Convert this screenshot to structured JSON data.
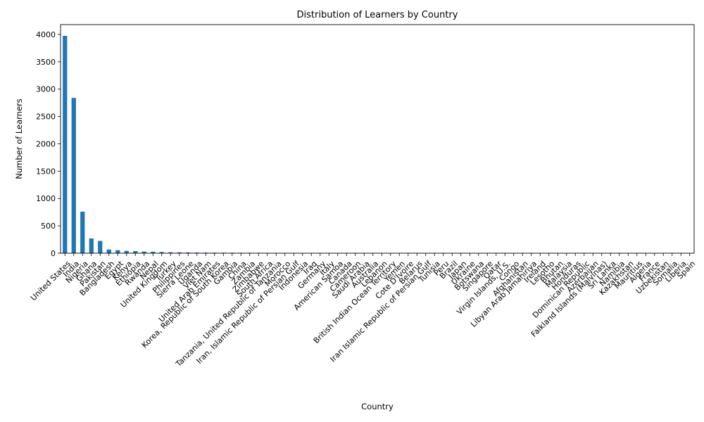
{
  "chart_data": {
    "type": "bar",
    "title": "Distribution of Learners by Country",
    "xlabel": "Country",
    "ylabel": "Number of Learners",
    "ylim": [
      0,
      4180
    ],
    "yticks": [
      0,
      500,
      1000,
      1500,
      2000,
      2500,
      3000,
      3500,
      4000
    ],
    "grid": false,
    "legend": "none",
    "bar_color": "#1f77b4",
    "categories": [
      "United States",
      "India",
      "Nigeria",
      "Ghana",
      "Pakistan",
      "Bangladesh",
      "Egypt",
      "Kenya",
      "Ethiopia",
      "Rwanda",
      "Nepal",
      "United Kingdom",
      "Turkey",
      "Philippines",
      "Sierra Leone",
      "Uganda",
      "Viet Nam",
      "United Arab Emirates",
      "Korea, Republic of South Korea",
      "Gambia",
      "China",
      "Zambia",
      "Zimbabwe",
      "South Africa",
      "Tanzania, United Republic of Tanzania",
      "Morocco",
      "Iran, Islamic Republic of Persian Gulf",
      "Indonesia",
      "Iraq",
      "Germany",
      "Italy",
      "American Samoa",
      "Canada",
      "Cameroon",
      "Saudi Arabia",
      "Australia",
      "Lebanon",
      "British Indian Ocean Territory",
      "Yemen",
      "Cote D'Ivoire",
      "Belarus",
      "Iran  Islamic Republic of Persian Gulf",
      "Tunisia",
      "Peru",
      "Brazil",
      "Japan",
      "Ukraine",
      "Botswana",
      "Singapore",
      "Qatar",
      "Virgin Islands, U.S.",
      "Congo",
      "Afghanistan",
      "Libyan Arab Jamahiriya",
      "Ireland",
      "Lesotho",
      "Bhutan",
      "Malaysia",
      "Honduras",
      "Dominican Republic",
      "Azerbaijan",
      "Falkland Islands (Malvinas)",
      "Sri Lanka",
      "Namibia",
      "Kazakhstan",
      "Mauritius",
      "Algeria",
      "France",
      "Uzbekistan",
      "Somalia",
      "Liberia",
      "Spain"
    ],
    "values": [
      3975,
      2840,
      760,
      270,
      225,
      68,
      55,
      42,
      38,
      30,
      27,
      22,
      18,
      16,
      14,
      12,
      11,
      10,
      10,
      9,
      8,
      8,
      7,
      6,
      6,
      5,
      5,
      5,
      4,
      4,
      4,
      3,
      3,
      3,
      3,
      3,
      3,
      2,
      2,
      2,
      2,
      2,
      2,
      2,
      2,
      2,
      2,
      1,
      1,
      1,
      1,
      1,
      1,
      1,
      1,
      1,
      1,
      1,
      1,
      1,
      1,
      1,
      1,
      1,
      1,
      1,
      1,
      1,
      1,
      1,
      1,
      1
    ]
  }
}
